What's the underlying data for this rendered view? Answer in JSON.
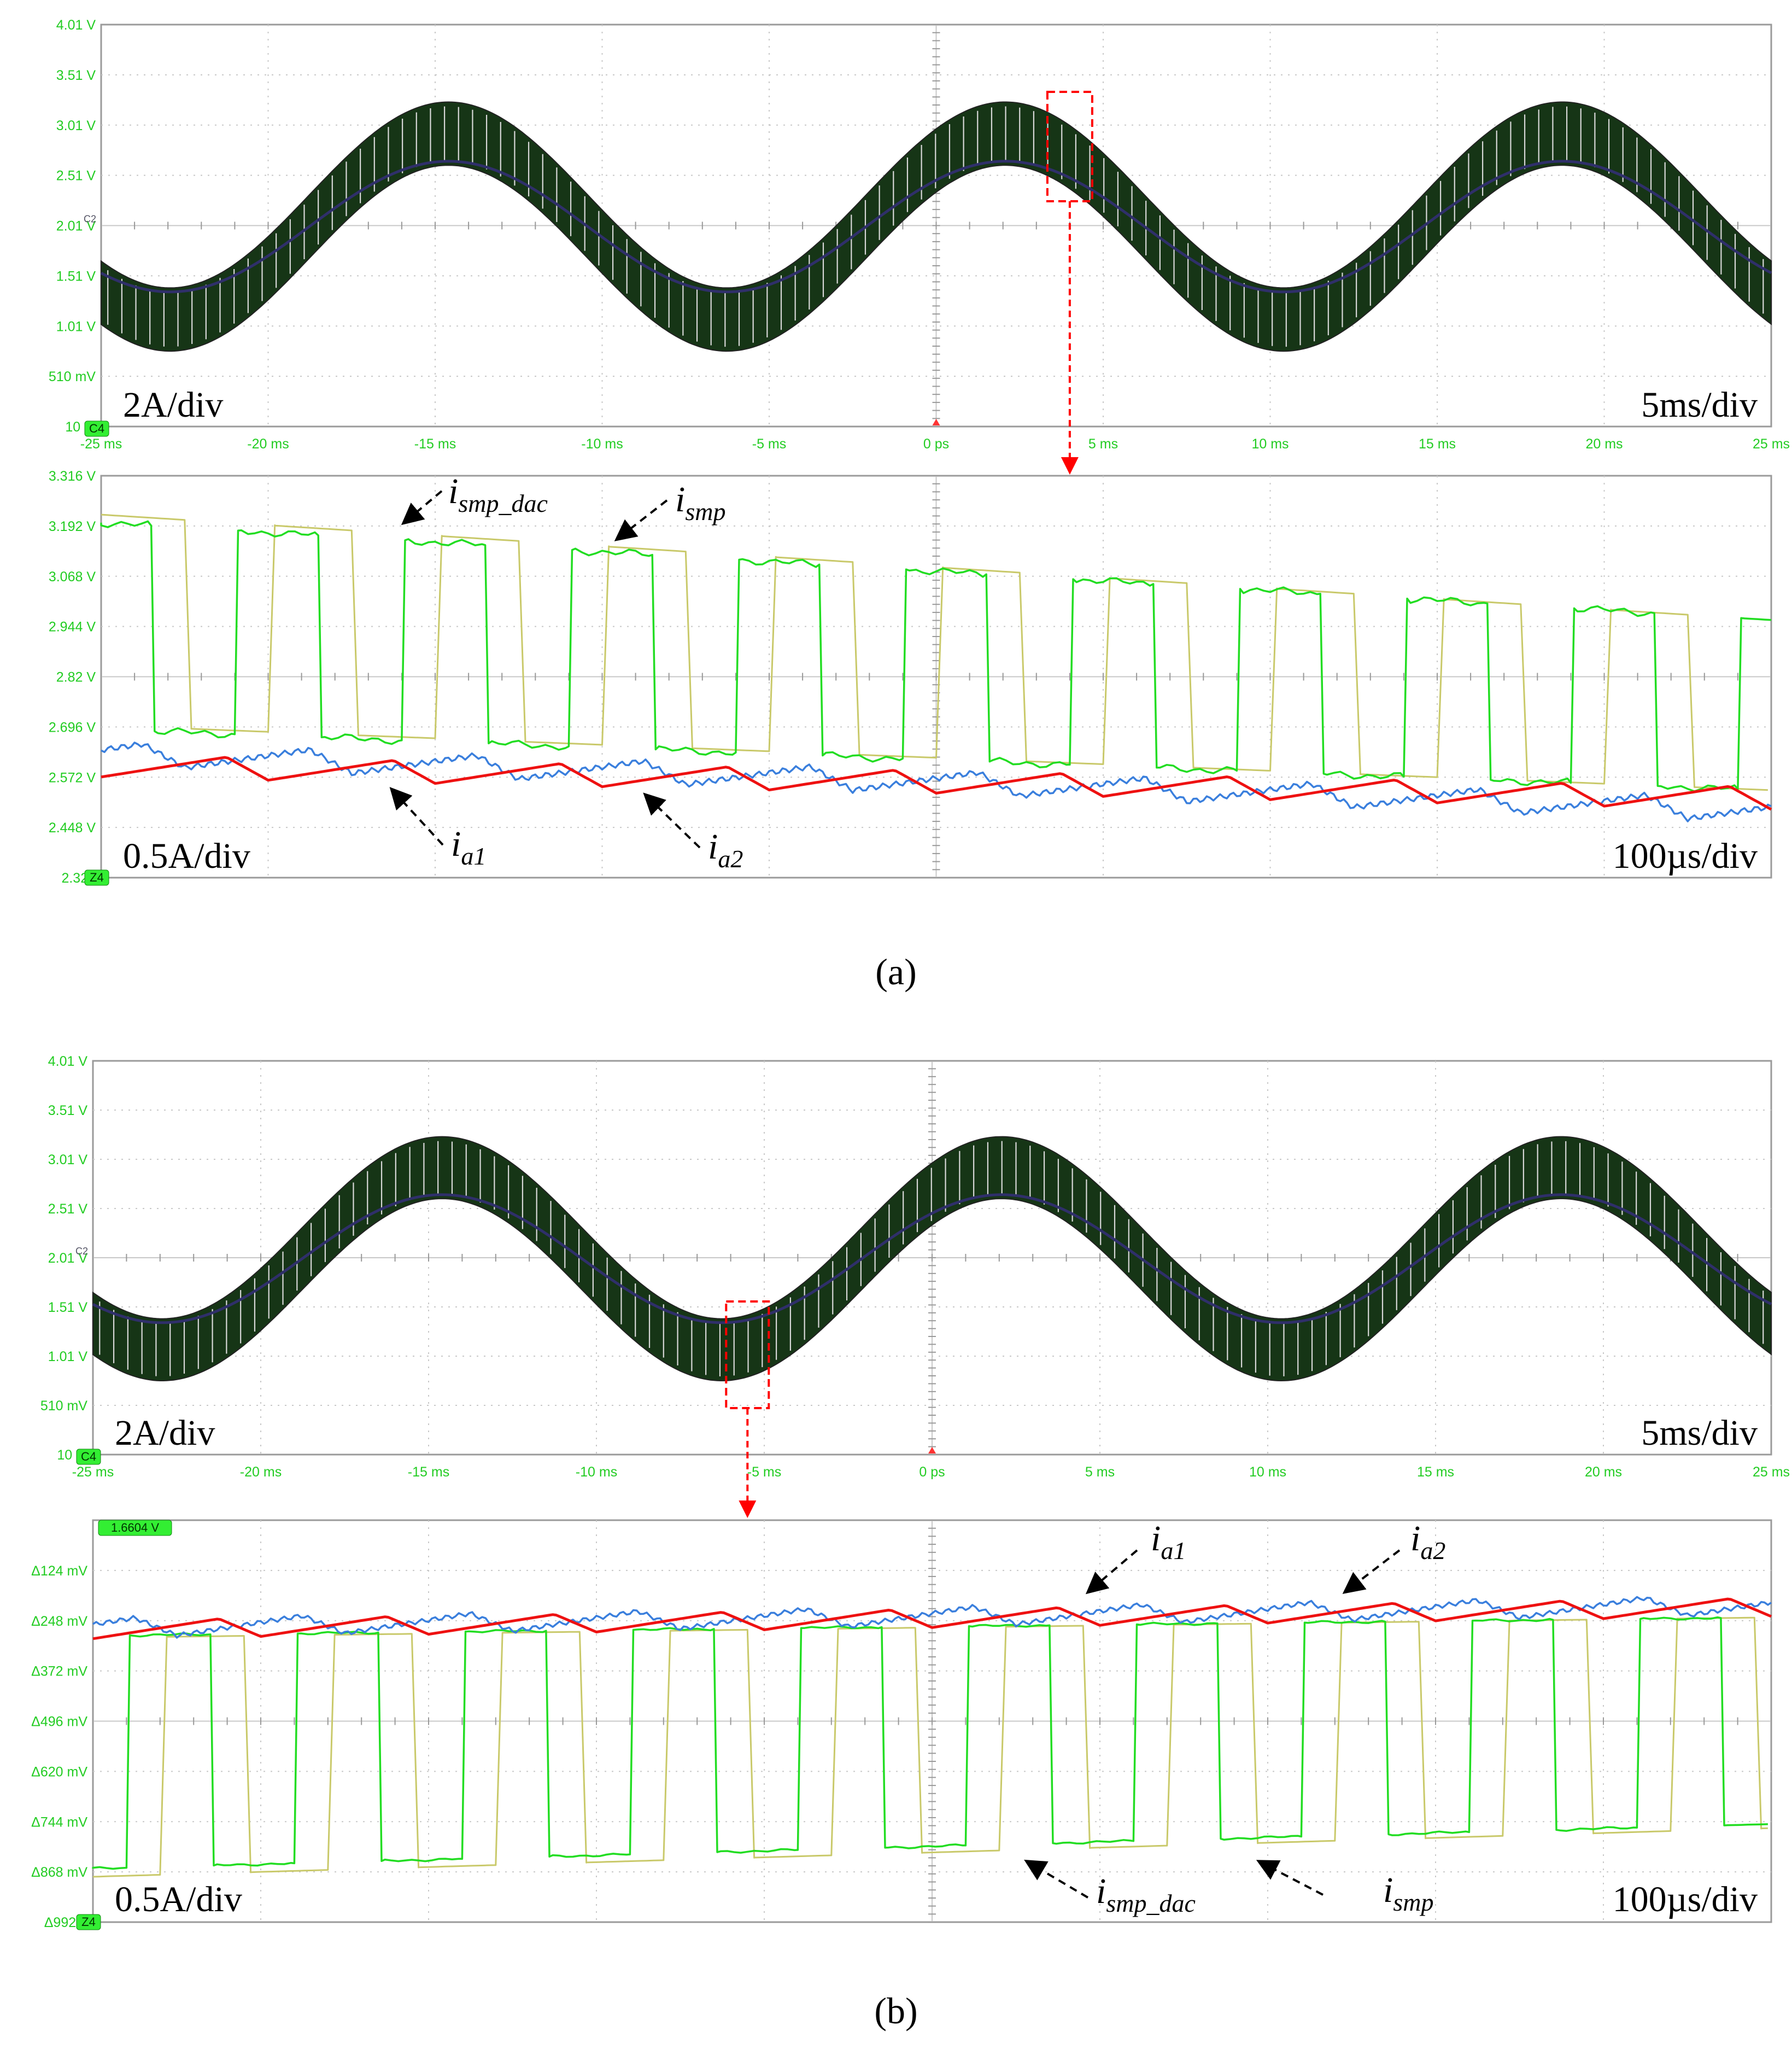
{
  "colors": {
    "grid": "#c8c8c8",
    "frame": "#9a9a9a",
    "axis_text": "#22cc22",
    "envelope_fill": "#163516",
    "envelope_bottom": "#2f2f6a",
    "envelope_stripes": "#d8d8d8",
    "i_smp": "#c9c96a",
    "i_smp_dac": "#22dd22",
    "i_a1": "#ee1111",
    "i_a2": "#3a7fdd",
    "zoom_marker": "#ff0000",
    "annotation": "#000000"
  },
  "panels": [
    {
      "caption": "(a)",
      "caption_letter": "a",
      "top": {
        "yticks": [
          "4.01 V",
          "3.51 V",
          "3.01 V",
          "2.51 V",
          "2.01 V",
          "1.51 V",
          "1.01 V",
          "510 mV",
          "10 m"
        ],
        "xticks": [
          "-25 ms",
          "-20 ms",
          "-15 ms",
          "-10 ms",
          "-5 ms",
          "0 ps",
          "5 ms",
          "10 ms",
          "15 ms",
          "20 ms",
          "25 ms"
        ],
        "channel_tag": "C2",
        "ref_tag": "C4",
        "scale_left": "2A/div",
        "scale_right": "5ms/div",
        "zoom_time_ms": 4
      },
      "bottom": {
        "yticks": [
          "3.316 V",
          "3.192 V",
          "3.068 V",
          "2.944 V",
          "2.82 V",
          "2.696 V",
          "2.572 V",
          "2.448 V",
          "2.324"
        ],
        "ref_tag": "Z4",
        "offset_badge": "",
        "scale_left": "0.5A/div",
        "scale_right": "100µs/div",
        "labels": [
          {
            "base": "i",
            "sub": "smp_dac"
          },
          {
            "base": "i",
            "sub": "smp"
          },
          {
            "base": "i",
            "sub": "a1"
          },
          {
            "base": "i",
            "sub": "a2"
          }
        ]
      }
    },
    {
      "caption": "(b)",
      "caption_letter": "b",
      "top": {
        "yticks": [
          "4.01 V",
          "3.51 V",
          "3.01 V",
          "2.51 V",
          "2.01 V",
          "1.51 V",
          "1.01 V",
          "510 mV",
          "10 m"
        ],
        "xticks": [
          "-25 ms",
          "-20 ms",
          "-15 ms",
          "-10 ms",
          "-5 ms",
          "0 ps",
          "5 ms",
          "10 ms",
          "15 ms",
          "20 ms",
          "25 ms"
        ],
        "channel_tag": "C2",
        "ref_tag": "C4",
        "scale_left": "2A/div",
        "scale_right": "5ms/div",
        "zoom_time_ms": -5.5
      },
      "bottom": {
        "yticks": [
          "",
          "Δ124 mV",
          "Δ248 mV",
          "Δ372 mV",
          "Δ496 mV",
          "Δ620 mV",
          "Δ744 mV",
          "Δ868 mV",
          "Δ992 n"
        ],
        "ref_tag": "Z4",
        "offset_badge": "1.6604 V",
        "scale_left": "0.5A/div",
        "scale_right": "100µs/div",
        "labels": [
          {
            "base": "i",
            "sub": "a1"
          },
          {
            "base": "i",
            "sub": "a2"
          },
          {
            "base": "i",
            "sub": "smp_dac"
          },
          {
            "base": "i",
            "sub": "smp"
          }
        ]
      }
    }
  ],
  "chart_data": [
    {
      "type": "line",
      "panel": "a-top",
      "x_unit": "ms",
      "xlim": [
        -25,
        25
      ],
      "ylim": [
        0.01,
        4.01
      ],
      "series": [
        {
          "kind": "envelope",
          "center_V": 2.0,
          "amp_V": 0.65,
          "period_ms": 16.67,
          "peak_at_ms": -14.6,
          "ripple_hi_V": 0.55
        }
      ]
    },
    {
      "type": "line",
      "panel": "a-bottom",
      "x_unit": "µs",
      "xlim": [
        -500,
        500
      ],
      "ylim": [
        2.324,
        3.316
      ],
      "series": [
        {
          "name": "i_smp",
          "kind": "sample_hold",
          "high_start_V": 3.22,
          "high_end_V": 2.96,
          "low_start_V": 2.7,
          "low_end_V": 2.54,
          "period_us": 100,
          "first_edge_us": -470,
          "delay_us": 20
        },
        {
          "name": "i_smp_dac",
          "kind": "sample_hold",
          "high_start_V": 3.2,
          "high_end_V": 2.96,
          "low_start_V": 2.69,
          "low_end_V": 2.54,
          "period_us": 100,
          "first_edge_us": -470,
          "delay_us": 0
        },
        {
          "name": "i_a1",
          "kind": "sawtooth",
          "start_V": 2.6,
          "end_V": 2.52,
          "amp_V": 0.055,
          "period_us": 100
        },
        {
          "name": "i_a2",
          "kind": "sawtooth",
          "start_V": 2.63,
          "end_V": 2.49,
          "amp_V": 0.055,
          "period_us": 100,
          "phase_us": 50
        }
      ]
    },
    {
      "type": "line",
      "panel": "b-top",
      "x_unit": "ms",
      "xlim": [
        -25,
        25
      ],
      "ylim": [
        0.01,
        4.01
      ],
      "series": [
        {
          "kind": "envelope",
          "center_V": 2.0,
          "amp_V": 0.65,
          "period_ms": 16.67,
          "peak_at_ms": -14.6,
          "ripple_hi_V": 0.55
        }
      ]
    },
    {
      "type": "line",
      "panel": "b-bottom",
      "x_unit": "µs",
      "xlim": [
        -500,
        500
      ],
      "ylim": [
        0,
        992
      ],
      "y_unit": "Δ mV (inverted)",
      "series": [
        {
          "name": "i_smp",
          "kind": "sample_hold",
          "high_start_mV": 290,
          "high_end_mV": 240,
          "low_start_mV": 880,
          "low_end_mV": 760,
          "period_us": 100,
          "first_edge_us": -480,
          "delay_us": 20
        },
        {
          "name": "i_smp_dac",
          "kind": "sample_hold",
          "high_start_mV": 285,
          "high_end_mV": 240,
          "low_start_mV": 860,
          "low_end_mV": 750,
          "period_us": 100,
          "first_edge_us": -480,
          "delay_us": 0
        },
        {
          "name": "i_a1",
          "kind": "sawtooth",
          "start_mV": 270,
          "end_mV": 215,
          "amp_mV": 45,
          "period_us": 100
        },
        {
          "name": "i_a2",
          "kind": "sawtooth",
          "start_mV": 265,
          "end_mV": 210,
          "amp_mV": 45,
          "period_us": 100,
          "phase_us": 50
        }
      ]
    }
  ]
}
